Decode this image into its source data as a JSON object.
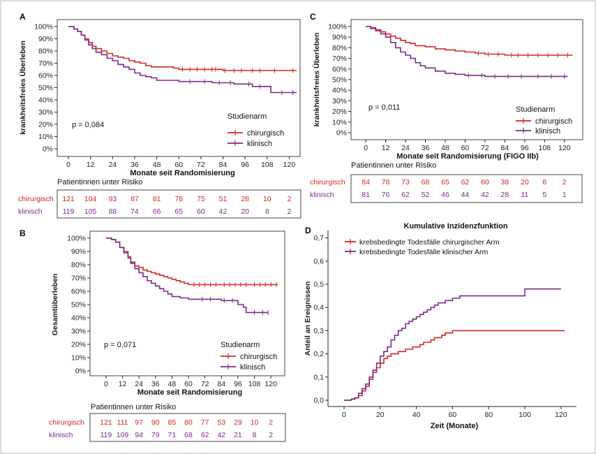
{
  "colors": {
    "chirurgisch": "#d7261e",
    "klinisch": "#7b2a8c",
    "axis": "#222222",
    "frame": "#555555"
  },
  "chart_data": [
    {
      "id": "A",
      "type": "line",
      "label": "A",
      "xlabel": "Monate seit Randomisierung",
      "ylabel": "krankheitsfreies Überleben",
      "xlim": [
        0,
        124
      ],
      "ylim": [
        0,
        1
      ],
      "xticks": [
        "0",
        "12",
        "24",
        "36",
        "48",
        "60",
        "72",
        "84",
        "96",
        "108",
        "120"
      ],
      "yticks": [
        "0%",
        "10%",
        "20%",
        "30%",
        "40%",
        "50%",
        "60%",
        "70%",
        "80%",
        "90%",
        "100%"
      ],
      "pvalue": "p = 0,084",
      "legend_title": "Studienarm",
      "series": [
        {
          "name": "chirurgisch",
          "color": "#d7261e",
          "x": [
            0,
            3,
            5,
            7,
            9,
            11,
            13,
            15,
            18,
            21,
            24,
            27,
            30,
            33,
            36,
            39,
            42,
            45,
            48,
            51,
            54,
            57,
            60,
            66,
            72,
            84,
            96,
            108,
            124
          ],
          "y": [
            1.0,
            0.98,
            0.96,
            0.93,
            0.9,
            0.87,
            0.84,
            0.82,
            0.8,
            0.78,
            0.76,
            0.75,
            0.74,
            0.72,
            0.71,
            0.7,
            0.68,
            0.67,
            0.67,
            0.67,
            0.67,
            0.66,
            0.65,
            0.65,
            0.65,
            0.64,
            0.64,
            0.64,
            0.64
          ],
          "censor": [
            62,
            66,
            70,
            74,
            78,
            80,
            85,
            90,
            94,
            100,
            104,
            112,
            122
          ]
        },
        {
          "name": "klinisch",
          "color": "#7b2a8c",
          "x": [
            0,
            3,
            5,
            7,
            9,
            11,
            13,
            15,
            18,
            21,
            24,
            27,
            30,
            33,
            36,
            39,
            42,
            45,
            48,
            54,
            60,
            66,
            78,
            90,
            100,
            106,
            110,
            124
          ],
          "y": [
            1.0,
            0.98,
            0.96,
            0.93,
            0.89,
            0.85,
            0.82,
            0.79,
            0.77,
            0.74,
            0.72,
            0.69,
            0.67,
            0.65,
            0.62,
            0.6,
            0.59,
            0.58,
            0.56,
            0.56,
            0.55,
            0.55,
            0.54,
            0.53,
            0.51,
            0.51,
            0.46,
            0.46
          ],
          "censor": [
            66,
            74,
            82,
            88,
            98,
            104,
            116,
            122
          ]
        }
      ],
      "risk_table": {
        "title": "Patientinnen unter Risiko",
        "rows": [
          {
            "name": "chirurgisch",
            "values": [
              "121",
              "104",
              "93",
              "87",
              "81",
              "78",
              "75",
              "51",
              "28",
              "10",
              "2"
            ]
          },
          {
            "name": "klinisch",
            "values": [
              "119",
              "105",
              "88",
              "74",
              "66",
              "65",
              "60",
              "42",
              "20",
              "8",
              "2"
            ]
          }
        ]
      }
    },
    {
      "id": "B",
      "type": "line",
      "label": "B",
      "xlabel": "Monate seit Randomisierung",
      "ylabel": "Gesamtüberleben",
      "xlim": [
        -4,
        126
      ],
      "ylim": [
        0,
        1
      ],
      "xticks": [
        "0",
        "12",
        "24",
        "36",
        "48",
        "60",
        "72",
        "84",
        "96",
        "108",
        "120"
      ],
      "yticks": [
        "0%",
        "10%",
        "20%",
        "30%",
        "40%",
        "50%",
        "60%",
        "70%",
        "80%",
        "90%",
        "100%"
      ],
      "pvalue": "p = 0,071",
      "legend_title": "Studienarm",
      "series": [
        {
          "name": "chirurgisch",
          "color": "#d7261e",
          "x": [
            0,
            4,
            7,
            10,
            13,
            16,
            18,
            21,
            24,
            27,
            30,
            33,
            36,
            39,
            42,
            45,
            48,
            51,
            54,
            57,
            60,
            66,
            72,
            84,
            96,
            108,
            125
          ],
          "y": [
            1.0,
            0.99,
            0.97,
            0.93,
            0.9,
            0.86,
            0.82,
            0.79,
            0.78,
            0.76,
            0.75,
            0.74,
            0.73,
            0.72,
            0.71,
            0.7,
            0.69,
            0.68,
            0.67,
            0.66,
            0.65,
            0.65,
            0.65,
            0.65,
            0.65,
            0.65,
            0.65
          ],
          "censor": [
            64,
            68,
            72,
            76,
            80,
            86,
            90,
            94,
            98,
            102,
            108,
            112,
            116,
            120,
            124
          ]
        },
        {
          "name": "klinisch",
          "color": "#7b2a8c",
          "x": [
            0,
            4,
            7,
            10,
            13,
            16,
            18,
            21,
            24,
            27,
            30,
            33,
            36,
            39,
            42,
            45,
            48,
            54,
            60,
            72,
            84,
            96,
            100,
            102,
            106,
            112,
            118
          ],
          "y": [
            1.0,
            0.99,
            0.97,
            0.93,
            0.89,
            0.85,
            0.81,
            0.77,
            0.74,
            0.71,
            0.68,
            0.66,
            0.64,
            0.62,
            0.6,
            0.58,
            0.56,
            0.55,
            0.54,
            0.54,
            0.53,
            0.5,
            0.48,
            0.44,
            0.44,
            0.44,
            0.44
          ],
          "censor": [
            70,
            76,
            86,
            92,
            108,
            114,
            118
          ]
        }
      ],
      "risk_table": {
        "title": "Patientinnen unter Risiko",
        "rows": [
          {
            "name": "chirurgisch",
            "values": [
              "121",
              "111",
              "97",
              "90",
              "85",
              "80",
              "77",
              "53",
              "29",
              "10",
              "2"
            ]
          },
          {
            "name": "klinisch",
            "values": [
              "119",
              "109",
              "94",
              "79",
              "71",
              "68",
              "62",
              "42",
              "21",
              "8",
              "2"
            ]
          }
        ]
      }
    },
    {
      "id": "C",
      "type": "line",
      "label": "C",
      "xlabel": "Monate seit Randomisierung (FIGO IIb)",
      "ylabel": "krankheitsfreies Überleben",
      "xlim": [
        -3,
        126
      ],
      "ylim": [
        0,
        1
      ],
      "xticks": [
        "0",
        "12",
        "24",
        "36",
        "48",
        "60",
        "72",
        "84",
        "96",
        "108",
        "120"
      ],
      "yticks": [
        "0%",
        "10%",
        "20%",
        "30%",
        "40%",
        "50%",
        "60%",
        "70%",
        "80%",
        "90%",
        "100%"
      ],
      "pvalue": "p = 0,011",
      "legend_title": "Studienarm",
      "series": [
        {
          "name": "chirurgisch",
          "color": "#d7261e",
          "x": [
            0,
            3,
            6,
            9,
            12,
            15,
            18,
            21,
            24,
            27,
            30,
            36,
            42,
            48,
            54,
            60,
            66,
            72,
            84,
            96,
            108,
            125
          ],
          "y": [
            1.0,
            0.99,
            0.97,
            0.95,
            0.93,
            0.91,
            0.89,
            0.87,
            0.85,
            0.84,
            0.82,
            0.81,
            0.79,
            0.78,
            0.77,
            0.76,
            0.75,
            0.74,
            0.73,
            0.73,
            0.73,
            0.73
          ],
          "censor": [
            68,
            74,
            80,
            88,
            92,
            98,
            104,
            110,
            116,
            122
          ]
        },
        {
          "name": "klinisch",
          "color": "#7b2a8c",
          "x": [
            0,
            3,
            6,
            9,
            12,
            15,
            18,
            21,
            24,
            27,
            30,
            33,
            36,
            42,
            48,
            54,
            60,
            66,
            72,
            84,
            96,
            108,
            122
          ],
          "y": [
            1.0,
            0.98,
            0.96,
            0.93,
            0.9,
            0.85,
            0.8,
            0.76,
            0.73,
            0.7,
            0.66,
            0.63,
            0.61,
            0.58,
            0.56,
            0.55,
            0.54,
            0.54,
            0.53,
            0.53,
            0.53,
            0.53,
            0.53
          ],
          "censor": [
            62,
            70,
            78,
            86,
            94,
            104,
            112,
            120
          ]
        }
      ],
      "risk_table": {
        "title": "Patientinnen unter Risiko",
        "rows": [
          {
            "name": "chirurgisch",
            "values": [
              "84",
              "78",
              "73",
              "68",
              "65",
              "62",
              "60",
              "38",
              "20",
              "8",
              "2"
            ]
          },
          {
            "name": "klinisch",
            "values": [
              "81",
              "76",
              "62",
              "52",
              "46",
              "44",
              "42",
              "28",
              "11",
              "5",
              "1"
            ]
          }
        ]
      }
    },
    {
      "id": "D",
      "type": "line",
      "label": "D",
      "title": "Kumulative Inzidenzfunktion",
      "xlabel": "Zeit (Monate)",
      "ylabel": "Anteil an Ereignissen",
      "xlim": [
        -5,
        127
      ],
      "ylim": [
        -0.015,
        0.72
      ],
      "xticks": [
        "0",
        "20",
        "40",
        "60",
        "80",
        "100",
        "120"
      ],
      "yticks": [
        "0,0",
        "0,1",
        "0,2",
        "0,3",
        "0,4",
        "0,5",
        "0,6",
        "0,7"
      ],
      "series": [
        {
          "name": "krebsbedingte Todesfälle chirurgischer Arm",
          "color": "#d7261e",
          "x": [
            0,
            4,
            6,
            8,
            10,
            12,
            14,
            16,
            18,
            20,
            22,
            24,
            26,
            28,
            30,
            32,
            34,
            36,
            38,
            40,
            42,
            44,
            46,
            48,
            50,
            52,
            54,
            56,
            58,
            60,
            70,
            80,
            90,
            100,
            110,
            122
          ],
          "y": [
            0,
            0.005,
            0.01,
            0.02,
            0.04,
            0.06,
            0.09,
            0.12,
            0.14,
            0.16,
            0.18,
            0.19,
            0.2,
            0.2,
            0.21,
            0.21,
            0.22,
            0.22,
            0.23,
            0.23,
            0.24,
            0.25,
            0.25,
            0.26,
            0.27,
            0.27,
            0.28,
            0.29,
            0.29,
            0.3,
            0.3,
            0.3,
            0.3,
            0.3,
            0.3,
            0.3
          ]
        },
        {
          "name": "krebsbedingte Todesfälle klinischer Arm",
          "color": "#7b2a8c",
          "x": [
            0,
            4,
            6,
            8,
            10,
            12,
            14,
            16,
            18,
            20,
            22,
            24,
            26,
            28,
            30,
            32,
            34,
            36,
            38,
            40,
            42,
            44,
            46,
            48,
            50,
            52,
            54,
            56,
            58,
            60,
            62,
            64,
            70,
            80,
            90,
            100,
            110,
            120
          ],
          "y": [
            0,
            0.005,
            0.01,
            0.03,
            0.05,
            0.07,
            0.1,
            0.13,
            0.16,
            0.19,
            0.21,
            0.23,
            0.26,
            0.28,
            0.3,
            0.31,
            0.33,
            0.34,
            0.35,
            0.36,
            0.37,
            0.38,
            0.39,
            0.4,
            0.41,
            0.42,
            0.42,
            0.43,
            0.43,
            0.44,
            0.44,
            0.45,
            0.45,
            0.45,
            0.45,
            0.48,
            0.48,
            0.48
          ]
        }
      ]
    }
  ]
}
